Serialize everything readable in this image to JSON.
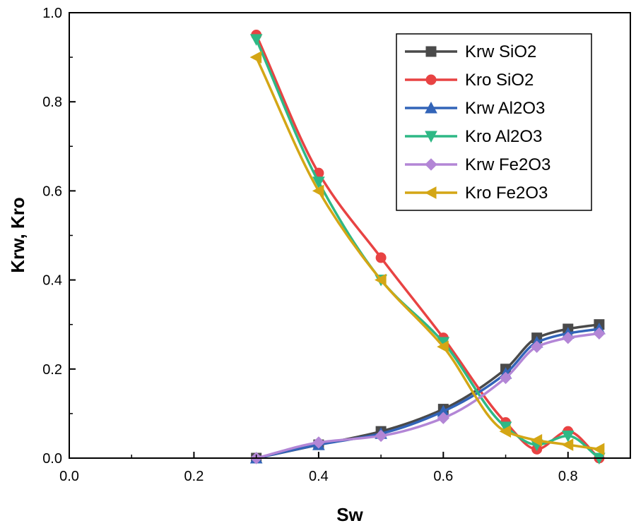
{
  "chart_data": {
    "type": "line",
    "title": "",
    "xlabel": "Sw",
    "ylabel": "Krw, Kro",
    "xlim": [
      0.0,
      0.9
    ],
    "ylim": [
      0.0,
      1.0
    ],
    "xticks": [
      0.0,
      0.2,
      0.4,
      0.6,
      0.8
    ],
    "xtick_labels": [
      "0.0",
      "0.2",
      "0.4",
      "0.6",
      "0.8"
    ],
    "yticks": [
      0.0,
      0.2,
      0.4,
      0.6,
      0.8,
      1.0
    ],
    "ytick_labels": [
      "0.0",
      "0.2",
      "0.4",
      "0.6",
      "0.8",
      "1.0"
    ],
    "grid": false,
    "legend_position": "top-right",
    "series": [
      {
        "name": "Krw SiO2",
        "color": "#4a4a4a",
        "marker": "square",
        "x": [
          0.3,
          0.4,
          0.5,
          0.6,
          0.7,
          0.75,
          0.8,
          0.85
        ],
        "y": [
          0.0,
          0.03,
          0.06,
          0.11,
          0.2,
          0.27,
          0.29,
          0.3
        ]
      },
      {
        "name": "Kro SiO2",
        "color": "#e84343",
        "marker": "circle",
        "x": [
          0.3,
          0.4,
          0.5,
          0.6,
          0.7,
          0.75,
          0.8,
          0.85
        ],
        "y": [
          0.95,
          0.64,
          0.45,
          0.27,
          0.08,
          0.02,
          0.06,
          0.0
        ]
      },
      {
        "name": "Krw Al2O3",
        "color": "#3264b8",
        "marker": "triangle-up",
        "x": [
          0.3,
          0.4,
          0.5,
          0.6,
          0.7,
          0.75,
          0.8,
          0.85
        ],
        "y": [
          0.0,
          0.03,
          0.055,
          0.105,
          0.19,
          0.26,
          0.28,
          0.29
        ]
      },
      {
        "name": "Kro Al2O3",
        "color": "#2eb885",
        "marker": "triangle-down",
        "x": [
          0.3,
          0.4,
          0.5,
          0.6,
          0.7,
          0.75,
          0.8,
          0.85
        ],
        "y": [
          0.94,
          0.62,
          0.4,
          0.26,
          0.07,
          0.03,
          0.05,
          0.0
        ]
      },
      {
        "name": "Krw Fe2O3",
        "color": "#b386d6",
        "marker": "diamond",
        "x": [
          0.3,
          0.4,
          0.5,
          0.6,
          0.7,
          0.75,
          0.8,
          0.85
        ],
        "y": [
          0.0,
          0.035,
          0.05,
          0.09,
          0.18,
          0.25,
          0.27,
          0.28
        ]
      },
      {
        "name": "Kro Fe2O3",
        "color": "#d4a615",
        "marker": "triangle-left",
        "x": [
          0.3,
          0.4,
          0.5,
          0.6,
          0.7,
          0.75,
          0.8,
          0.85
        ],
        "y": [
          0.9,
          0.6,
          0.4,
          0.25,
          0.06,
          0.04,
          0.03,
          0.02
        ]
      }
    ]
  }
}
